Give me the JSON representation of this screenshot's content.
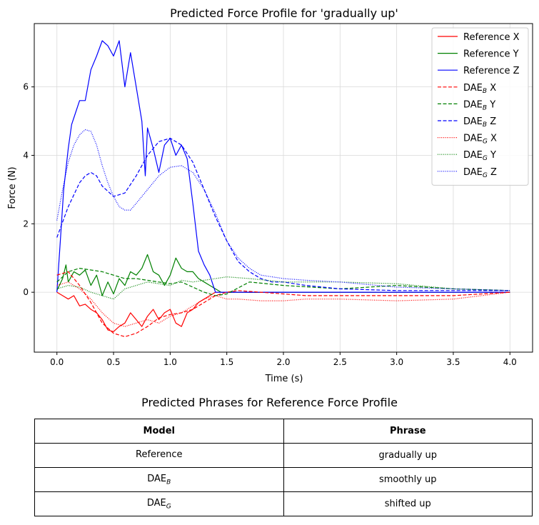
{
  "chart_data": {
    "type": "line",
    "title": "Predicted Force Profile for 'gradually up'",
    "xlabel": "Time (s)",
    "ylabel": "Force (N)",
    "xlim": [
      -0.2,
      4.2
    ],
    "ylim": [
      -1.75,
      7.85
    ],
    "xticks": [
      0.0,
      0.5,
      1.0,
      1.5,
      2.0,
      2.5,
      3.0,
      3.5,
      4.0
    ],
    "xtick_labels": [
      "0.0",
      "0.5",
      "1.0",
      "1.5",
      "2.0",
      "2.5",
      "3.0",
      "3.5",
      "4.0"
    ],
    "yticks": [
      0,
      2,
      4,
      6
    ],
    "ytick_labels": [
      "0",
      "2",
      "4",
      "6"
    ],
    "grid": true,
    "legend_position": "top-right",
    "series": [
      {
        "name": "Reference X",
        "label_main": "Reference X",
        "label_sub": "",
        "label_suffix": "",
        "color": "#ff0000",
        "dash": "solid",
        "x": [
          0,
          0.05,
          0.1,
          0.15,
          0.2,
          0.25,
          0.3,
          0.35,
          0.4,
          0.45,
          0.5,
          0.55,
          0.6,
          0.65,
          0.7,
          0.75,
          0.8,
          0.85,
          0.9,
          0.95,
          1.0,
          1.05,
          1.1,
          1.15,
          1.2,
          1.25,
          1.3,
          1.35,
          1.4,
          1.45,
          1.5,
          4.0
        ],
        "y": [
          0,
          -0.1,
          -0.2,
          -0.1,
          -0.4,
          -0.35,
          -0.5,
          -0.6,
          -0.8,
          -1.1,
          -1.15,
          -1.0,
          -0.9,
          -0.6,
          -0.8,
          -1.0,
          -0.7,
          -0.5,
          -0.8,
          -0.6,
          -0.5,
          -0.9,
          -1.0,
          -0.6,
          -0.5,
          -0.3,
          -0.2,
          -0.1,
          0,
          0,
          0,
          0
        ]
      },
      {
        "name": "Reference Y",
        "label_main": "Reference Y",
        "label_sub": "",
        "label_suffix": "",
        "color": "#008000",
        "dash": "solid",
        "x": [
          0,
          0.05,
          0.08,
          0.1,
          0.15,
          0.2,
          0.25,
          0.3,
          0.35,
          0.4,
          0.45,
          0.5,
          0.55,
          0.6,
          0.65,
          0.7,
          0.75,
          0.8,
          0.85,
          0.9,
          0.95,
          1.0,
          1.05,
          1.1,
          1.15,
          1.2,
          1.25,
          1.3,
          1.35,
          1.4,
          1.45,
          1.5,
          4.0
        ],
        "y": [
          0.05,
          0.4,
          0.8,
          0.3,
          0.6,
          0.5,
          0.65,
          0.2,
          0.5,
          -0.1,
          0.3,
          -0.05,
          0.4,
          0.2,
          0.6,
          0.5,
          0.7,
          1.1,
          0.6,
          0.5,
          0.2,
          0.5,
          1.0,
          0.7,
          0.6,
          0.6,
          0.4,
          0.3,
          0.2,
          0.1,
          0,
          0,
          0
        ]
      },
      {
        "name": "Reference Z",
        "label_main": "Reference Z",
        "label_sub": "",
        "label_suffix": "",
        "color": "#0000ff",
        "dash": "solid",
        "x": [
          0,
          0.03,
          0.06,
          0.1,
          0.13,
          0.16,
          0.2,
          0.25,
          0.3,
          0.35,
          0.4,
          0.45,
          0.5,
          0.55,
          0.6,
          0.65,
          0.7,
          0.75,
          0.78,
          0.8,
          0.85,
          0.9,
          0.95,
          1.0,
          1.05,
          1.1,
          1.15,
          1.2,
          1.25,
          1.3,
          1.35,
          1.38,
          1.4,
          1.5,
          4.0
        ],
        "y": [
          0,
          1.5,
          3.0,
          4.2,
          4.9,
          5.2,
          5.6,
          5.6,
          6.5,
          6.9,
          7.35,
          7.2,
          6.9,
          7.35,
          6.0,
          7.0,
          6.0,
          5.0,
          3.4,
          4.8,
          4.2,
          3.5,
          4.3,
          4.5,
          4.0,
          4.3,
          3.9,
          2.6,
          1.2,
          0.8,
          0.5,
          0.2,
          0.0,
          0.0,
          0.0
        ]
      },
      {
        "name": "DAE_B X",
        "label_main": "DAE",
        "label_sub": "B",
        "label_suffix": " X",
        "color": "#ff0000",
        "dash": "dashed",
        "x": [
          0,
          0.1,
          0.2,
          0.3,
          0.4,
          0.5,
          0.6,
          0.7,
          0.8,
          0.9,
          1.0,
          1.1,
          1.2,
          1.3,
          1.4,
          1.5,
          1.6,
          1.8,
          2.0,
          2.2,
          2.5,
          3.0,
          3.5,
          4.0
        ],
        "y": [
          0.5,
          0.6,
          0.2,
          -0.3,
          -0.9,
          -1.2,
          -1.3,
          -1.2,
          -1.0,
          -0.75,
          -0.65,
          -0.6,
          -0.5,
          -0.3,
          -0.1,
          0.0,
          0.05,
          0.0,
          -0.05,
          -0.1,
          -0.1,
          -0.1,
          -0.1,
          0.0
        ]
      },
      {
        "name": "DAE_B Y",
        "label_main": "DAE",
        "label_sub": "B",
        "label_suffix": " Y",
        "color": "#008000",
        "dash": "dashed",
        "x": [
          0,
          0.1,
          0.2,
          0.3,
          0.4,
          0.5,
          0.6,
          0.7,
          0.8,
          0.9,
          1.0,
          1.1,
          1.2,
          1.3,
          1.4,
          1.5,
          1.7,
          2.0,
          2.5,
          3.0,
          3.5,
          4.0
        ],
        "y": [
          0.3,
          0.6,
          0.7,
          0.65,
          0.6,
          0.5,
          0.4,
          0.4,
          0.35,
          0.3,
          0.25,
          0.3,
          0.15,
          0.0,
          -0.1,
          -0.05,
          0.3,
          0.2,
          0.1,
          0.2,
          0.1,
          0.05
        ]
      },
      {
        "name": "DAE_B Z",
        "label_main": "DAE",
        "label_sub": "B",
        "label_suffix": " Z",
        "color": "#0000ff",
        "dash": "dashed",
        "x": [
          0,
          0.1,
          0.2,
          0.25,
          0.3,
          0.35,
          0.4,
          0.5,
          0.6,
          0.7,
          0.8,
          0.9,
          1.0,
          1.1,
          1.2,
          1.3,
          1.4,
          1.5,
          1.6,
          1.7,
          1.8,
          1.9,
          2.0,
          2.2,
          2.5,
          3.0,
          3.5,
          4.0
        ],
        "y": [
          1.6,
          2.5,
          3.2,
          3.4,
          3.5,
          3.4,
          3.1,
          2.8,
          2.9,
          3.4,
          4.0,
          4.4,
          4.5,
          4.3,
          3.8,
          3.0,
          2.2,
          1.5,
          0.9,
          0.6,
          0.4,
          0.3,
          0.3,
          0.2,
          0.1,
          0.05,
          0.05,
          0.05
        ]
      },
      {
        "name": "DAE_G X",
        "label_main": "DAE",
        "label_sub": "G",
        "label_suffix": " X",
        "color": "#ff0000",
        "dash": "dotted",
        "x": [
          0,
          0.1,
          0.2,
          0.3,
          0.4,
          0.5,
          0.6,
          0.7,
          0.8,
          0.9,
          1.0,
          1.1,
          1.2,
          1.3,
          1.4,
          1.5,
          1.6,
          1.8,
          2.0,
          2.2,
          2.5,
          3.0,
          3.5,
          4.0
        ],
        "y": [
          0.2,
          0.3,
          0.1,
          -0.2,
          -0.6,
          -0.9,
          -1.0,
          -0.9,
          -0.8,
          -0.9,
          -0.7,
          -0.6,
          -0.4,
          -0.2,
          -0.1,
          -0.2,
          -0.2,
          -0.25,
          -0.25,
          -0.2,
          -0.2,
          -0.25,
          -0.2,
          0.0
        ]
      },
      {
        "name": "DAE_G Y",
        "label_main": "DAE",
        "label_sub": "G",
        "label_suffix": " Y",
        "color": "#008000",
        "dash": "dotted",
        "x": [
          0,
          0.1,
          0.2,
          0.3,
          0.4,
          0.5,
          0.6,
          0.7,
          0.8,
          0.9,
          1.0,
          1.1,
          1.2,
          1.3,
          1.4,
          1.5,
          1.7,
          2.0,
          2.5,
          3.0,
          3.5,
          4.0
        ],
        "y": [
          0.1,
          0.2,
          0.15,
          0.0,
          -0.1,
          -0.2,
          0.1,
          0.2,
          0.3,
          0.25,
          0.2,
          0.35,
          0.3,
          0.35,
          0.4,
          0.45,
          0.4,
          0.3,
          0.3,
          0.25,
          0.1,
          0.05
        ]
      },
      {
        "name": "DAE_G Z",
        "label_main": "DAE",
        "label_sub": "G",
        "label_suffix": " Z",
        "color": "#0000ff",
        "dash": "dotted",
        "x": [
          0,
          0.05,
          0.1,
          0.15,
          0.2,
          0.25,
          0.3,
          0.35,
          0.4,
          0.45,
          0.5,
          0.55,
          0.6,
          0.65,
          0.7,
          0.8,
          0.9,
          1.0,
          1.1,
          1.2,
          1.3,
          1.4,
          1.5,
          1.6,
          1.7,
          1.8,
          2.0,
          2.2,
          2.5,
          3.0,
          3.5,
          4.0
        ],
        "y": [
          2.1,
          3.0,
          3.8,
          4.3,
          4.6,
          4.75,
          4.7,
          4.3,
          3.7,
          3.2,
          2.8,
          2.5,
          2.4,
          2.4,
          2.6,
          3.0,
          3.4,
          3.65,
          3.7,
          3.5,
          3.0,
          2.3,
          1.5,
          1.0,
          0.7,
          0.5,
          0.4,
          0.35,
          0.3,
          0.15,
          0.1,
          0.05
        ]
      }
    ]
  },
  "table": {
    "title": "Predicted Phrases for Reference Force Profile",
    "header_model": "Model",
    "header_phrase": "Phrase",
    "rows": [
      {
        "model_main": "Reference",
        "model_sub": "",
        "phrase": "gradually up"
      },
      {
        "model_main": "DAE",
        "model_sub": "B",
        "phrase": "smoothly up"
      },
      {
        "model_main": "DAE",
        "model_sub": "G",
        "phrase": "shifted  up"
      }
    ]
  }
}
